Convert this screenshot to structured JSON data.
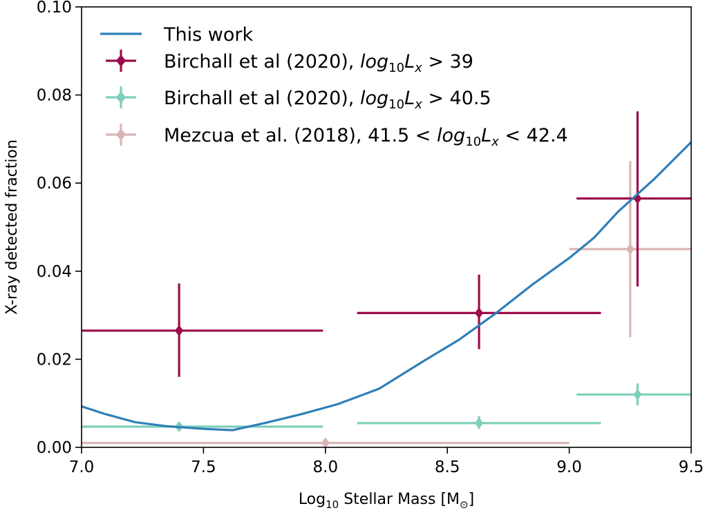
{
  "chart_data": {
    "type": "line",
    "xlabel": "Log$_{10}$ Stellar Mass [M$_{\\odot}$]",
    "xlabel_parts": {
      "base": "Log",
      "sub": "10",
      "rest": " Stellar Mass [M",
      "sub2": "⊙",
      "close": "]"
    },
    "ylabel": "X-ray detected fraction",
    "xlim": [
      7.0,
      9.5
    ],
    "ylim": [
      0.0,
      0.1
    ],
    "xticks": [
      7.0,
      7.5,
      8.0,
      8.5,
      9.0,
      9.5
    ],
    "xtick_labels": [
      "7.0",
      "7.5",
      "8.0",
      "8.5",
      "9.0",
      "9.5"
    ],
    "yticks": [
      0.0,
      0.02,
      0.04,
      0.06,
      0.08,
      0.1
    ],
    "ytick_labels": [
      "0.00",
      "0.02",
      "0.04",
      "0.06",
      "0.08",
      "0.10"
    ],
    "grid": false,
    "legend_position": "top-left",
    "line": {
      "name": "This work",
      "color": "#2f7fb8",
      "x": [
        7.0,
        7.1,
        7.22,
        7.35,
        7.5,
        7.62,
        7.75,
        7.9,
        8.05,
        8.22,
        8.4,
        8.55,
        8.7,
        8.85,
        9.0,
        9.1,
        9.2,
        9.35,
        9.5
      ],
      "y": [
        0.0093,
        0.0075,
        0.0057,
        0.0048,
        0.0042,
        0.0039,
        0.0055,
        0.0075,
        0.0098,
        0.0133,
        0.0195,
        0.0245,
        0.0305,
        0.037,
        0.043,
        0.0475,
        0.0535,
        0.061,
        0.0693
      ]
    },
    "series": [
      {
        "name": "Birchall et al (2020), $log_{10}L_x > 39$",
        "legend_prefix": "Birchall et al (2020), ",
        "legend_threshold": "39",
        "legend_kind": "gt",
        "color": "#9b0c4a",
        "points": [
          {
            "x": 7.4,
            "y": 0.0265,
            "xerr": [
              7.0,
              7.99
            ],
            "yerr": [
              0.016,
              0.0372
            ]
          },
          {
            "x": 8.63,
            "y": 0.0305,
            "xerr": [
              8.13,
              9.13
            ],
            "yerr": [
              0.0223,
              0.0392
            ]
          },
          {
            "x": 9.28,
            "y": 0.0565,
            "xerr": [
              9.03,
              9.5
            ],
            "yerr": [
              0.0365,
              0.0763
            ]
          }
        ]
      },
      {
        "name": "Birchall et al (2020), $log_{10}L_x > 40.5$",
        "legend_prefix": "Birchall et al (2020), ",
        "legend_threshold": "40.5",
        "legend_kind": "gt",
        "color": "#7ecfbb",
        "points": [
          {
            "x": 7.4,
            "y": 0.0047,
            "xerr": [
              7.0,
              7.99
            ],
            "yerr": [
              0.0039,
              0.0055
            ]
          },
          {
            "x": 8.63,
            "y": 0.0055,
            "xerr": [
              8.13,
              9.13
            ],
            "yerr": [
              0.0042,
              0.0071
            ]
          },
          {
            "x": 9.28,
            "y": 0.012,
            "xerr": [
              9.03,
              9.5
            ],
            "yerr": [
              0.0095,
              0.0145
            ]
          }
        ]
      },
      {
        "name": "Mezcua et al. (2018), $41.5 < log_{10}L_x < 42.4$",
        "legend_prefix": "Mezcua et al. (2018), ",
        "legend_low": "41.5",
        "legend_high": "42.4",
        "legend_kind": "range",
        "color": "#dbb5b5",
        "points": [
          {
            "x": 8.0,
            "y": 0.001,
            "xerr": [
              7.0,
              9.0
            ],
            "yerr": [
              0.001,
              0.001
            ]
          },
          {
            "x": 9.25,
            "y": 0.045,
            "xerr": [
              9.0,
              9.5
            ],
            "yerr": [
              0.025,
              0.065
            ]
          }
        ]
      }
    ]
  }
}
